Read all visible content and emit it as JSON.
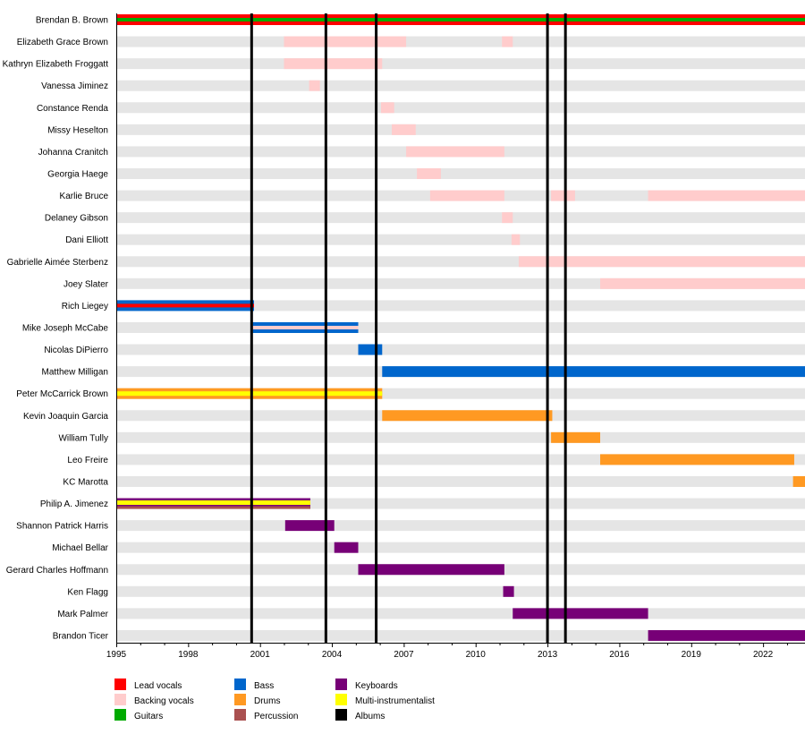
{
  "chart_data": {
    "type": "timeline",
    "xlim": [
      1995,
      2023.75
    ],
    "x_ticks": [
      "1995",
      "1998",
      "2001",
      "2004",
      "2007",
      "2010",
      "2013",
      "2016",
      "2019",
      "2022"
    ],
    "colors": {
      "lead_vocals": "#ff0000",
      "backing_vocals": "#ffcccc",
      "guitars": "#00aa00",
      "bass": "#0066cc",
      "drums": "#ff9922",
      "percussion": "#aa5050",
      "keyboards": "#770077",
      "multi": "#ffff00",
      "albums": "#000000",
      "row_background": "#e5e5e5"
    },
    "albums": [
      2000.65,
      2003.75,
      2005.85,
      2013.0,
      2013.75
    ],
    "members": [
      {
        "name": "Brendan B. Brown",
        "bars": [
          {
            "from": 1995,
            "to": 2023.75,
            "role": "lead_vocals",
            "inner": "guitars"
          }
        ]
      },
      {
        "name": "Elizabeth Grace Brown",
        "bars": [
          {
            "from": 2002.0,
            "to": 2007.1,
            "role": "backing_vocals"
          },
          {
            "from": 2011.1,
            "to": 2011.55,
            "role": "backing_vocals"
          }
        ]
      },
      {
        "name": "Kathryn Elizabeth Froggatt",
        "bars": [
          {
            "from": 2002.0,
            "to": 2006.1,
            "role": "backing_vocals"
          }
        ]
      },
      {
        "name": "Vanessa Jiminez",
        "bars": [
          {
            "from": 2003.05,
            "to": 2003.5,
            "role": "backing_vocals"
          }
        ]
      },
      {
        "name": "Constance Renda",
        "bars": [
          {
            "from": 2006.05,
            "to": 2006.6,
            "role": "backing_vocals"
          }
        ]
      },
      {
        "name": "Missy Heselton",
        "bars": [
          {
            "from": 2006.5,
            "to": 2007.5,
            "role": "backing_vocals"
          }
        ]
      },
      {
        "name": "Johanna Cranitch",
        "bars": [
          {
            "from": 2007.1,
            "to": 2011.2,
            "role": "backing_vocals"
          }
        ]
      },
      {
        "name": "Georgia Haege",
        "bars": [
          {
            "from": 2007.55,
            "to": 2008.55,
            "role": "backing_vocals"
          }
        ]
      },
      {
        "name": "Karlie Bruce",
        "bars": [
          {
            "from": 2008.1,
            "to": 2011.2,
            "role": "backing_vocals"
          },
          {
            "from": 2013.15,
            "to": 2014.15,
            "role": "backing_vocals"
          },
          {
            "from": 2017.2,
            "to": 2023.75,
            "role": "backing_vocals"
          }
        ]
      },
      {
        "name": "Delaney Gibson",
        "bars": [
          {
            "from": 2011.1,
            "to": 2011.55,
            "role": "backing_vocals"
          }
        ]
      },
      {
        "name": "Dani Elliott",
        "bars": [
          {
            "from": 2011.5,
            "to": 2011.85,
            "role": "backing_vocals"
          }
        ]
      },
      {
        "name": "Gabrielle Aimée Sterbenz",
        "bars": [
          {
            "from": 2011.8,
            "to": 2023.75,
            "role": "backing_vocals"
          }
        ]
      },
      {
        "name": "Joey Slater",
        "bars": [
          {
            "from": 2015.2,
            "to": 2023.75,
            "role": "backing_vocals"
          }
        ]
      },
      {
        "name": "Rich Liegey",
        "bars": [
          {
            "from": 1995,
            "to": 2000.75,
            "role": "bass",
            "inner": "lead_vocals"
          }
        ]
      },
      {
        "name": "Mike Joseph McCabe",
        "bars": [
          {
            "from": 2000.7,
            "to": 2005.1,
            "role": "bass",
            "inner": "backing_vocals"
          }
        ]
      },
      {
        "name": "Nicolas DiPierro",
        "bars": [
          {
            "from": 2005.1,
            "to": 2006.1,
            "role": "bass"
          }
        ]
      },
      {
        "name": "Matthew Milligan",
        "bars": [
          {
            "from": 2006.1,
            "to": 2023.75,
            "role": "bass"
          }
        ]
      },
      {
        "name": "Peter McCarrick Brown",
        "bars": [
          {
            "from": 1995,
            "to": 2006.1,
            "role": "drums",
            "inner": "multi"
          }
        ]
      },
      {
        "name": "Kevin Joaquin Garcia",
        "bars": [
          {
            "from": 2006.1,
            "to": 2013.2,
            "role": "drums"
          }
        ]
      },
      {
        "name": "William Tully",
        "bars": [
          {
            "from": 2013.15,
            "to": 2015.2,
            "role": "drums"
          }
        ]
      },
      {
        "name": "Leo Freire",
        "bars": [
          {
            "from": 2015.2,
            "to": 2023.3,
            "role": "drums"
          }
        ]
      },
      {
        "name": "KC Marotta",
        "bars": [
          {
            "from": 2023.25,
            "to": 2023.75,
            "role": "drums"
          }
        ]
      },
      {
        "name": "Philip A. Jimenez",
        "bars": [
          {
            "from": 1995,
            "to": 2003.1,
            "role": "keyboards",
            "inner": "multi",
            "bottom": "percussion"
          }
        ]
      },
      {
        "name": "Shannon Patrick Harris",
        "bars": [
          {
            "from": 2002.05,
            "to": 2004.1,
            "role": "keyboards"
          }
        ]
      },
      {
        "name": "Michael Bellar",
        "bars": [
          {
            "from": 2004.1,
            "to": 2005.1,
            "role": "keyboards"
          }
        ]
      },
      {
        "name": "Gerard Charles Hoffmann",
        "bars": [
          {
            "from": 2005.1,
            "to": 2011.2,
            "role": "keyboards"
          }
        ]
      },
      {
        "name": "Ken Flagg",
        "bars": [
          {
            "from": 2011.15,
            "to": 2011.6,
            "role": "keyboards"
          }
        ]
      },
      {
        "name": "Mark Palmer",
        "bars": [
          {
            "from": 2011.55,
            "to": 2017.2,
            "role": "keyboards"
          }
        ]
      },
      {
        "name": "Brandon Ticer",
        "bars": [
          {
            "from": 2017.2,
            "to": 2023.75,
            "role": "keyboards"
          }
        ]
      }
    ],
    "legend": [
      {
        "key": "lead_vocals",
        "label": "Lead vocals"
      },
      {
        "key": "backing_vocals",
        "label": "Backing vocals"
      },
      {
        "key": "guitars",
        "label": "Guitars"
      },
      {
        "key": "bass",
        "label": "Bass"
      },
      {
        "key": "drums",
        "label": "Drums"
      },
      {
        "key": "percussion",
        "label": "Percussion"
      },
      {
        "key": "keyboards",
        "label": "Keyboards"
      },
      {
        "key": "multi",
        "label": "Multi-instrumentalist"
      },
      {
        "key": "albums",
        "label": "Albums"
      }
    ]
  }
}
